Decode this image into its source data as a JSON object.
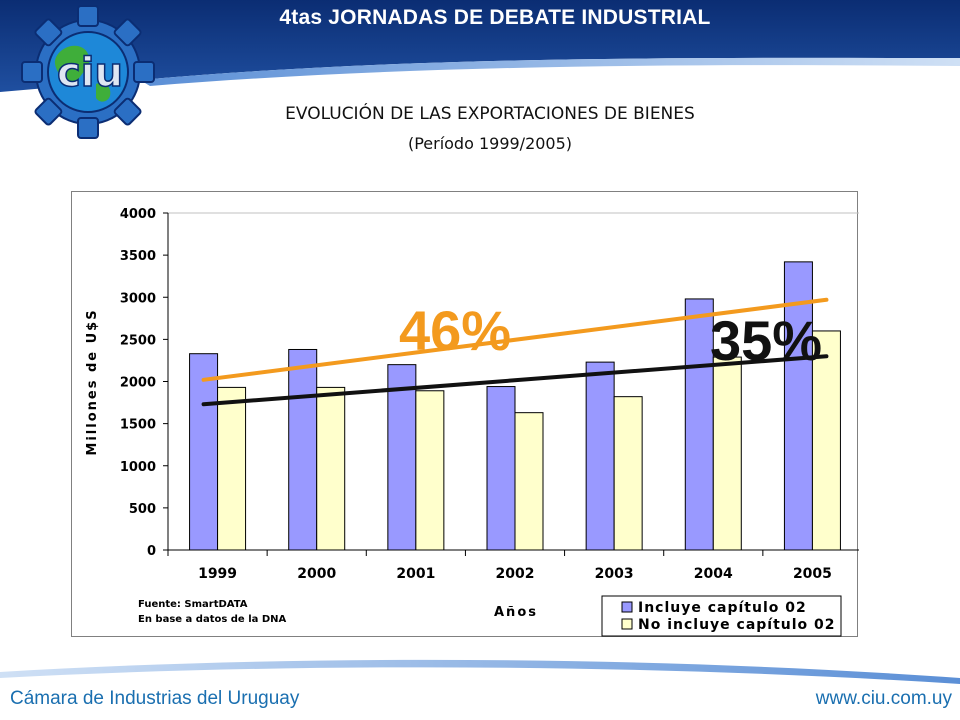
{
  "header": {
    "title": "4tas JORNADAS DE DEBATE INDUSTRIAL",
    "logo_text": "ciu",
    "colors": {
      "band": "#0b2d73",
      "band_light": "#2a62b8"
    }
  },
  "footer": {
    "left_text": "Cámara de Industrias del Uruguay",
    "right_text": "www.ciu.com.uy",
    "color": "#1a6fb0"
  },
  "chart_data": {
    "type": "bar",
    "title": "EVOLUCIÓN DE LAS EXPORTACIONES DE BIENES",
    "subtitle": "(Período 1999/2005)",
    "xlabel": "Años",
    "ylabel": "Millones de U$S",
    "ylim": [
      0,
      4000
    ],
    "yticks": [
      0,
      500,
      1000,
      1500,
      2000,
      2500,
      3000,
      3500,
      4000
    ],
    "categories": [
      "1999",
      "2000",
      "2001",
      "2002",
      "2003",
      "2004",
      "2005"
    ],
    "series": [
      {
        "name": "Incluye capítulo 02",
        "color": "#9999ff",
        "values": [
          2330,
          2380,
          2200,
          1940,
          2230,
          2980,
          3420
        ]
      },
      {
        "name": "No incluye capítulo 02",
        "color": "#ffffcc",
        "values": [
          1930,
          1930,
          1890,
          1630,
          1820,
          2290,
          2600
        ]
      }
    ],
    "trend_lines": [
      {
        "label": "46%",
        "color": "#f39a1e",
        "from": [
          "1999",
          2020
        ],
        "to": [
          "2005",
          2970
        ]
      },
      {
        "label": "35%",
        "color": "#111111",
        "from": [
          "1999",
          1730
        ],
        "to": [
          "2005",
          2300
        ]
      }
    ],
    "source": [
      "Fuente: SmartDATA",
      "En base a datos de la DNA"
    ],
    "legend_position": "bottom-right",
    "grid": false
  }
}
